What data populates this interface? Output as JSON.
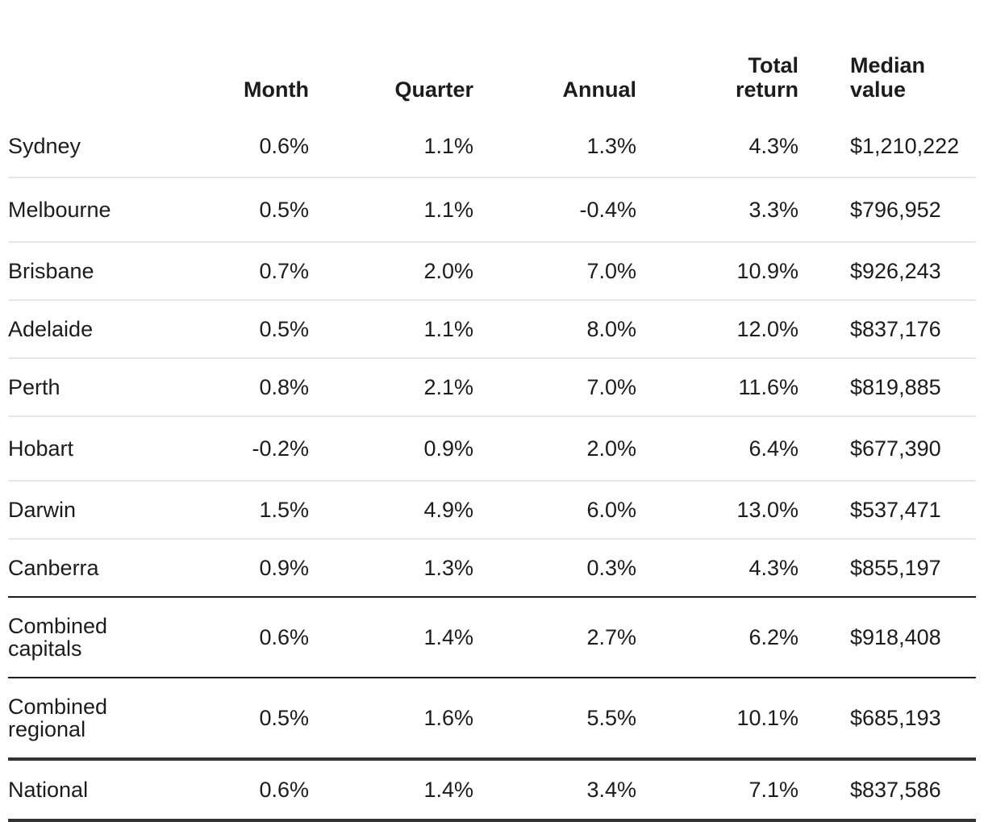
{
  "table": {
    "headers": {
      "month": "Month",
      "quarter": "Quarter",
      "annual": "Annual",
      "total_return_line1": "Total",
      "total_return_line2": "return",
      "median_line1": "Median",
      "median_line2": "value"
    },
    "rows": [
      {
        "name": "Sydney",
        "month": "0.6%",
        "quarter": "1.1%",
        "annual": "1.3%",
        "total_return": "4.3%",
        "median": "$1,210,222"
      },
      {
        "name": "Melbourne",
        "month": "0.5%",
        "quarter": "1.1%",
        "annual": "-0.4%",
        "total_return": "3.3%",
        "median": "$796,952"
      },
      {
        "name": "Brisbane",
        "month": "0.7%",
        "quarter": "2.0%",
        "annual": "7.0%",
        "total_return": "10.9%",
        "median": "$926,243"
      },
      {
        "name": "Adelaide",
        "month": "0.5%",
        "quarter": "1.1%",
        "annual": "8.0%",
        "total_return": "12.0%",
        "median": "$837,176"
      },
      {
        "name": "Perth",
        "month": "0.8%",
        "quarter": "2.1%",
        "annual": "7.0%",
        "total_return": "11.6%",
        "median": "$819,885"
      },
      {
        "name": "Hobart",
        "month": "-0.2%",
        "quarter": "0.9%",
        "annual": "2.0%",
        "total_return": "6.4%",
        "median": "$677,390"
      },
      {
        "name": "Darwin",
        "month": "1.5%",
        "quarter": "4.9%",
        "annual": "6.0%",
        "total_return": "13.0%",
        "median": "$537,471"
      },
      {
        "name": "Canberra",
        "month": "0.9%",
        "quarter": "1.3%",
        "annual": "0.3%",
        "total_return": "4.3%",
        "median": "$855,197"
      },
      {
        "name_line1": "Combined",
        "name_line2": "capitals",
        "month": "0.6%",
        "quarter": "1.4%",
        "annual": "2.7%",
        "total_return": "6.2%",
        "median": "$918,408"
      },
      {
        "name_line1": "Combined",
        "name_line2": "regional",
        "month": "0.5%",
        "quarter": "1.6%",
        "annual": "5.5%",
        "total_return": "10.1%",
        "median": "$685,193"
      },
      {
        "name": "National",
        "month": "0.6%",
        "quarter": "1.4%",
        "annual": "3.4%",
        "total_return": "7.1%",
        "median": "$837,586"
      }
    ]
  }
}
